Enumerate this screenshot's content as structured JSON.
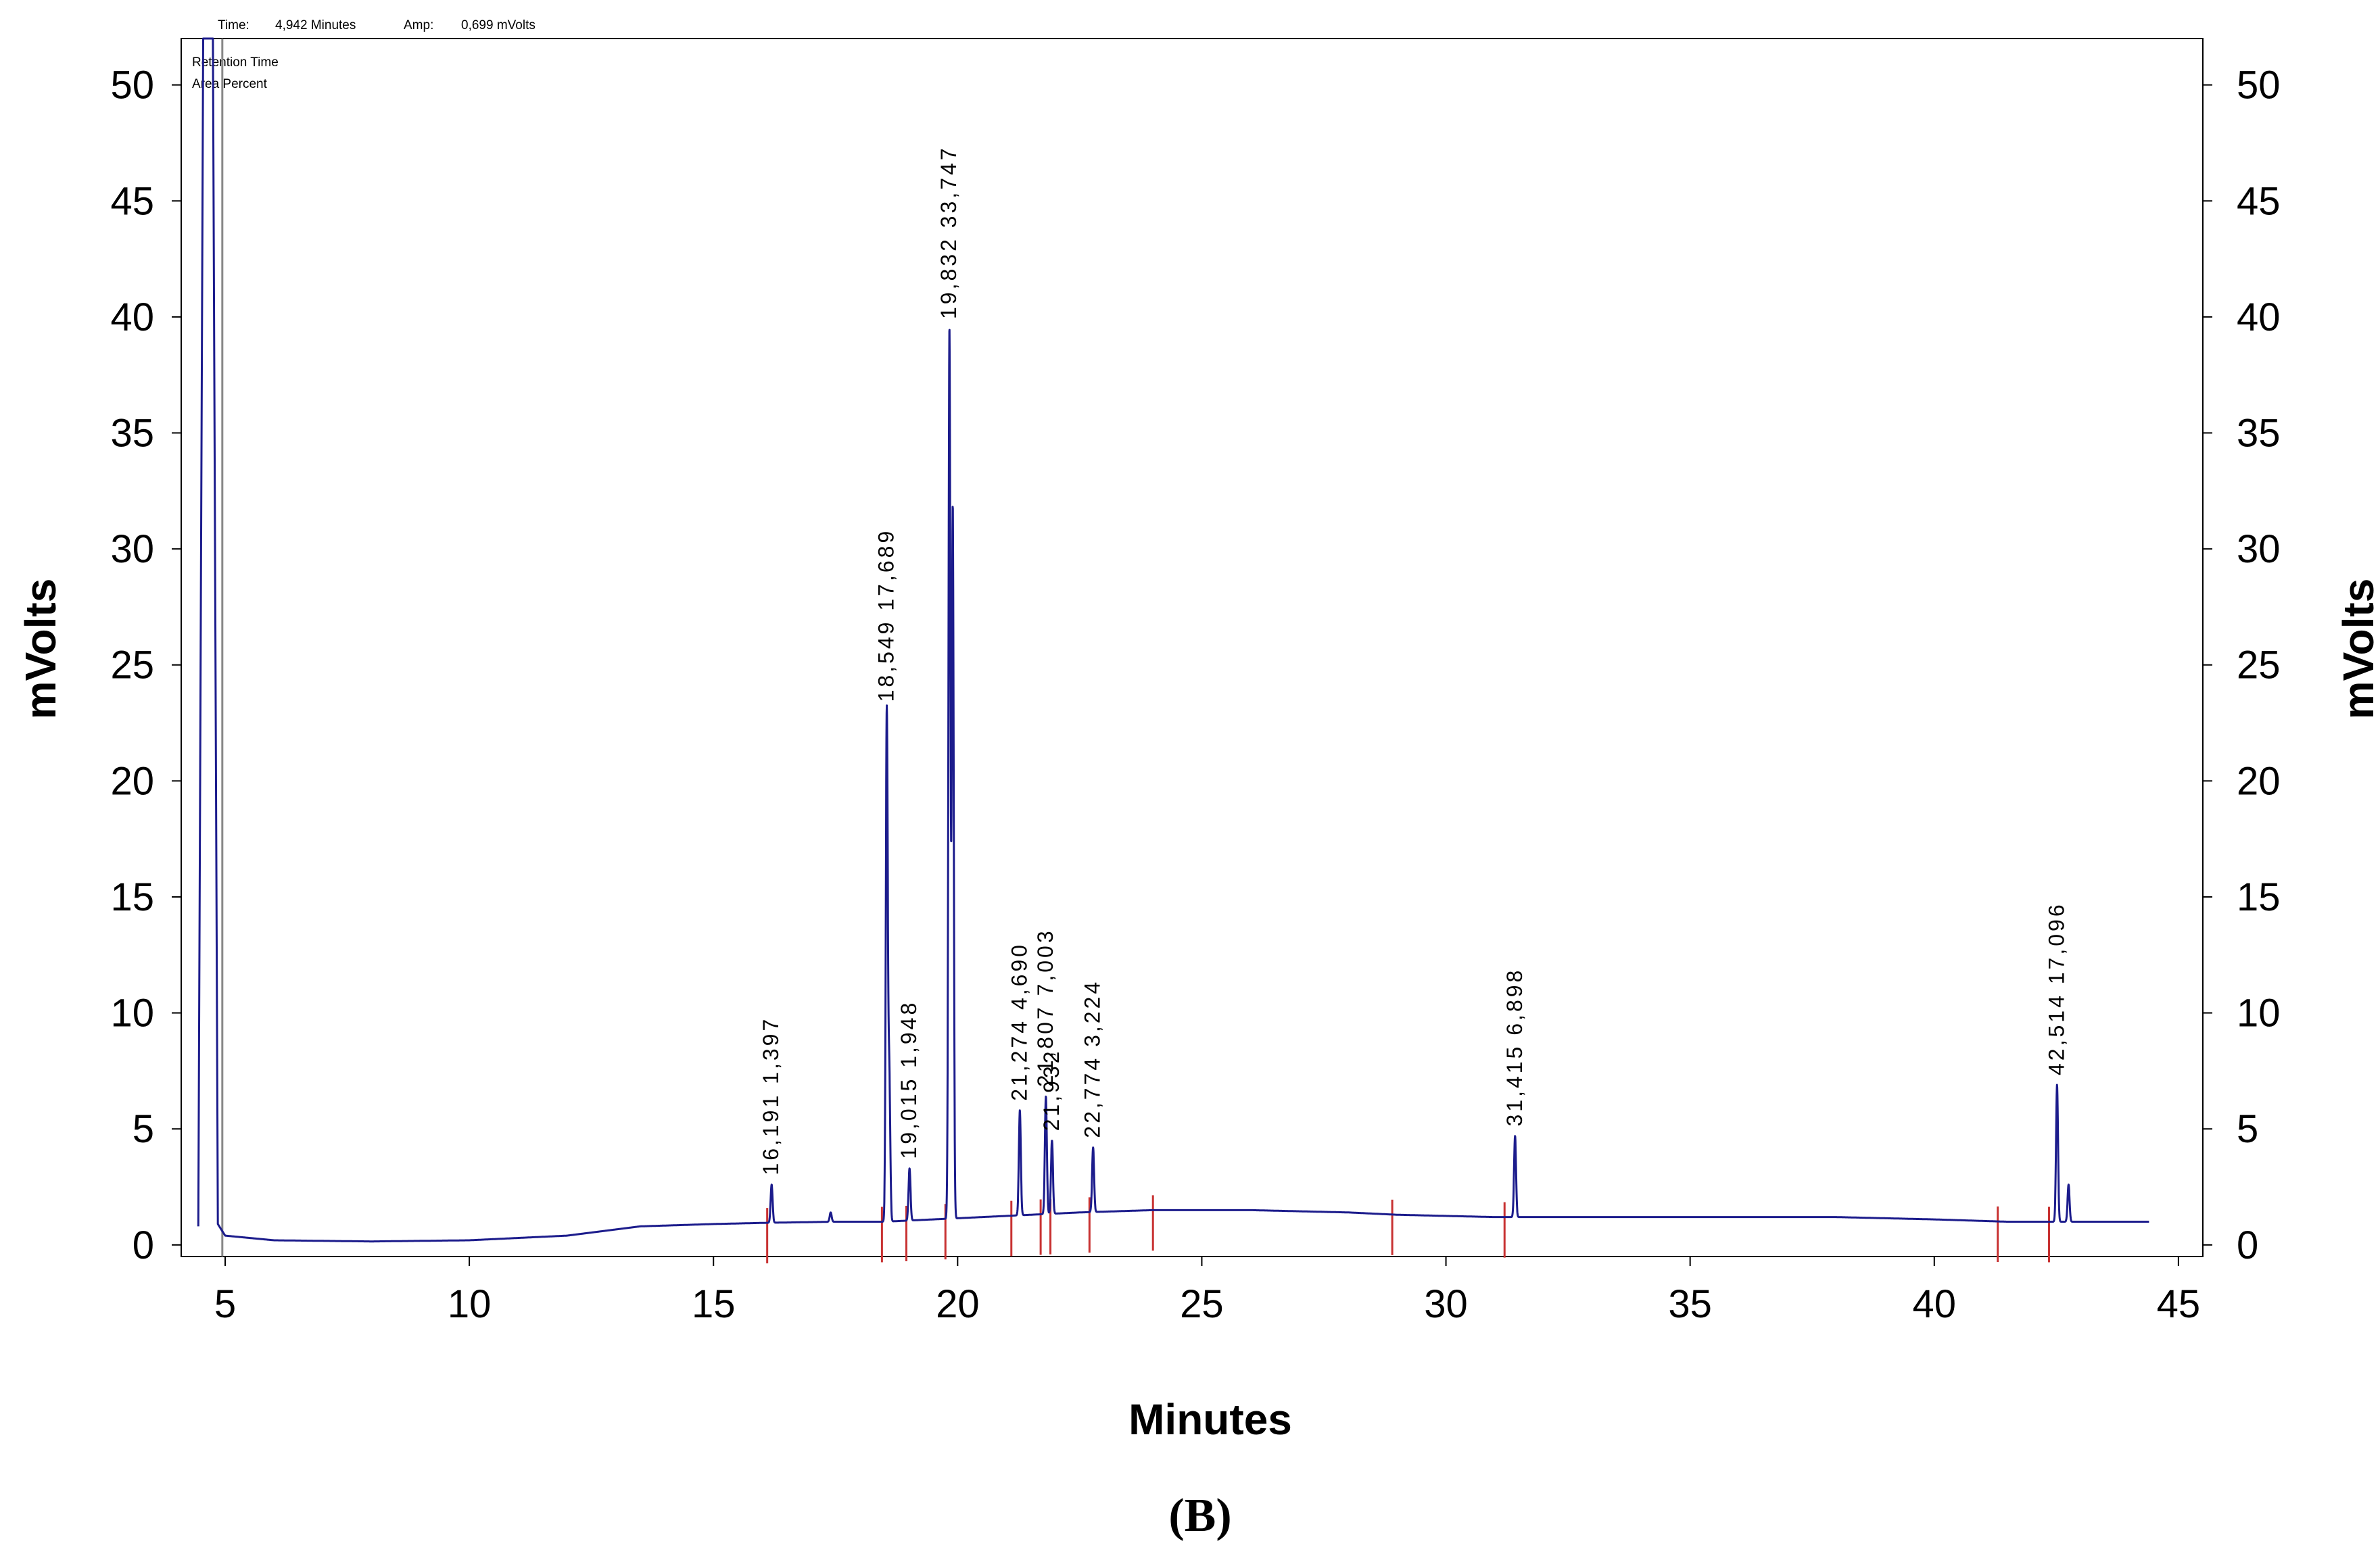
{
  "header": {
    "time_label": "Time:",
    "time_value": "4,942 Minutes",
    "amp_label": "Amp:",
    "amp_value": "0,699 mVolts"
  },
  "legend": {
    "line1": "Retention Time",
    "line2": "Area Percent"
  },
  "panel_label": "(B)",
  "colors": {
    "trace": "#1c1c8c",
    "marker": "#c83232",
    "frame": "#000000"
  },
  "chart_data": {
    "type": "line",
    "title": "",
    "xlabel": "Minutes",
    "ylabel": "mVolts",
    "ylabel_right": "mVolts",
    "xlim": [
      4.1,
      45.5
    ],
    "ylim": [
      -0.5,
      52
    ],
    "x_ticks": [
      5,
      10,
      15,
      20,
      25,
      30,
      35,
      40,
      45
    ],
    "y_ticks": [
      0,
      5,
      10,
      15,
      20,
      25,
      30,
      35,
      40,
      45,
      50
    ],
    "grid": false,
    "cursor_time": 4.942,
    "baseline": [
      [
        4.45,
        0.8
      ],
      [
        4.55,
        52
      ],
      [
        4.75,
        52
      ],
      [
        4.85,
        0.9
      ],
      [
        5.0,
        0.4
      ],
      [
        6.0,
        0.2
      ],
      [
        8.0,
        0.15
      ],
      [
        10.0,
        0.2
      ],
      [
        12.0,
        0.4
      ],
      [
        13.5,
        0.8
      ],
      [
        15.0,
        0.9
      ],
      [
        16.0,
        0.95
      ],
      [
        17.5,
        1.0
      ],
      [
        18.5,
        1.0
      ],
      [
        19.5,
        1.1
      ],
      [
        20.5,
        1.2
      ],
      [
        21.5,
        1.3
      ],
      [
        22.5,
        1.4
      ],
      [
        24.0,
        1.5
      ],
      [
        25.0,
        1.5
      ],
      [
        26.0,
        1.5
      ],
      [
        28.0,
        1.4
      ],
      [
        29.0,
        1.3
      ],
      [
        31.0,
        1.2
      ],
      [
        33.0,
        1.2
      ],
      [
        35.0,
        1.2
      ],
      [
        38.0,
        1.2
      ],
      [
        40.0,
        1.1
      ],
      [
        41.5,
        1.0
      ],
      [
        43.0,
        1.0
      ],
      [
        44.0,
        1.0
      ],
      [
        44.4,
        1.0
      ]
    ],
    "peaks": [
      {
        "rt": 16.191,
        "area": "1,397",
        "height": 2.6,
        "label": "16,191  1,397"
      },
      {
        "rt": 17.4,
        "height": 1.4
      },
      {
        "rt": 18.549,
        "area": "17,689",
        "height": 23.0,
        "label": "18,549  17,689"
      },
      {
        "rt": 18.6,
        "height": 7.3
      },
      {
        "rt": 19.015,
        "area": "1,948",
        "height": 3.3,
        "label": "19,015  1,948"
      },
      {
        "rt": 19.832,
        "area": "33,747",
        "height": 39.5,
        "label": "19,832  33,747"
      },
      {
        "rt": 19.9,
        "height": 31.8
      },
      {
        "rt": 21.274,
        "area": "4,690",
        "height": 5.8,
        "label": "21,274  4,690"
      },
      {
        "rt": 21.807,
        "area": "7,003",
        "height": 6.4,
        "label": "21,807  7,003"
      },
      {
        "rt": 21.932,
        "height": 4.5,
        "label": "21,932"
      },
      {
        "rt": 22.774,
        "area": "3,224",
        "height": 4.2,
        "label": "22,774  3,224"
      },
      {
        "rt": 31.415,
        "area": "6,898",
        "height": 4.7,
        "label": "31,415  6,898"
      },
      {
        "rt": 42.514,
        "area": "17,096",
        "height": 6.9,
        "label": "42,514  17,096"
      },
      {
        "rt": 42.75,
        "height": 2.6
      }
    ],
    "integration_marks": [
      16.1,
      18.45,
      18.95,
      19.75,
      21.1,
      21.7,
      21.9,
      22.7,
      24.0,
      28.9,
      31.2,
      41.3,
      42.35
    ]
  }
}
